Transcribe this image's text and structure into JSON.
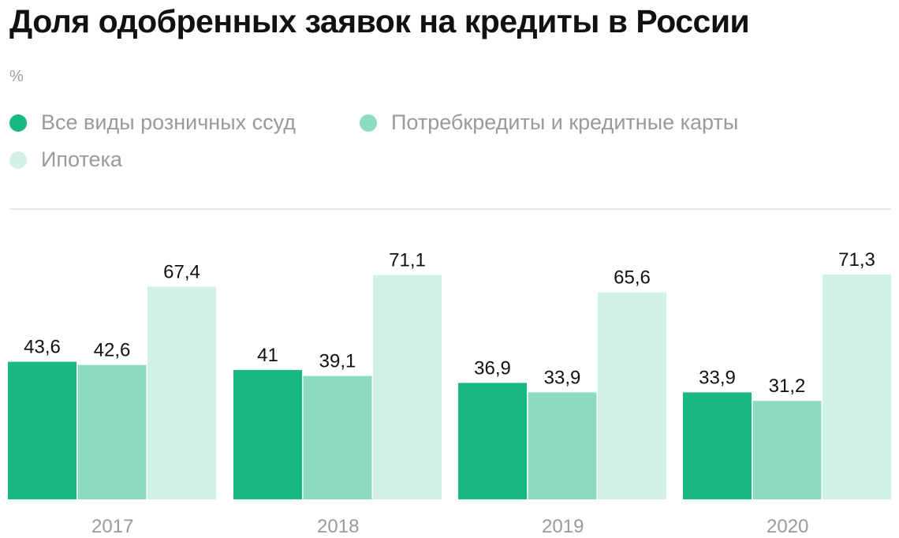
{
  "colors": {
    "series1": "#17b883",
    "series2": "#8cdcc3",
    "series3": "#d2f1e6",
    "title": "#111111",
    "muted": "#9a9a9a",
    "divider": "#e6e6e6"
  },
  "chart_data": {
    "type": "bar",
    "title": "Доля одобренных заявок на кредиты в России",
    "ylabel": "%",
    "xlabel": "",
    "ylim": [
      0,
      80
    ],
    "grid": false,
    "legend_position": "top-left",
    "categories": [
      "2017",
      "2018",
      "2019",
      "2020"
    ],
    "series": [
      {
        "name": "Все виды розничных ссуд",
        "values": [
          43.6,
          41,
          36.9,
          33.9
        ],
        "labels": [
          "43,6",
          "41",
          "36,9",
          "33,9"
        ]
      },
      {
        "name": "Потребкредиты и кредитные карты",
        "values": [
          42.6,
          39.1,
          33.9,
          31.2
        ],
        "labels": [
          "42,6",
          "39,1",
          "33,9",
          "31,2"
        ]
      },
      {
        "name": "Ипотека",
        "values": [
          67.4,
          71.1,
          65.6,
          71.3
        ],
        "labels": [
          "67,4",
          "71,1",
          "65,6",
          "71,3"
        ]
      }
    ]
  }
}
